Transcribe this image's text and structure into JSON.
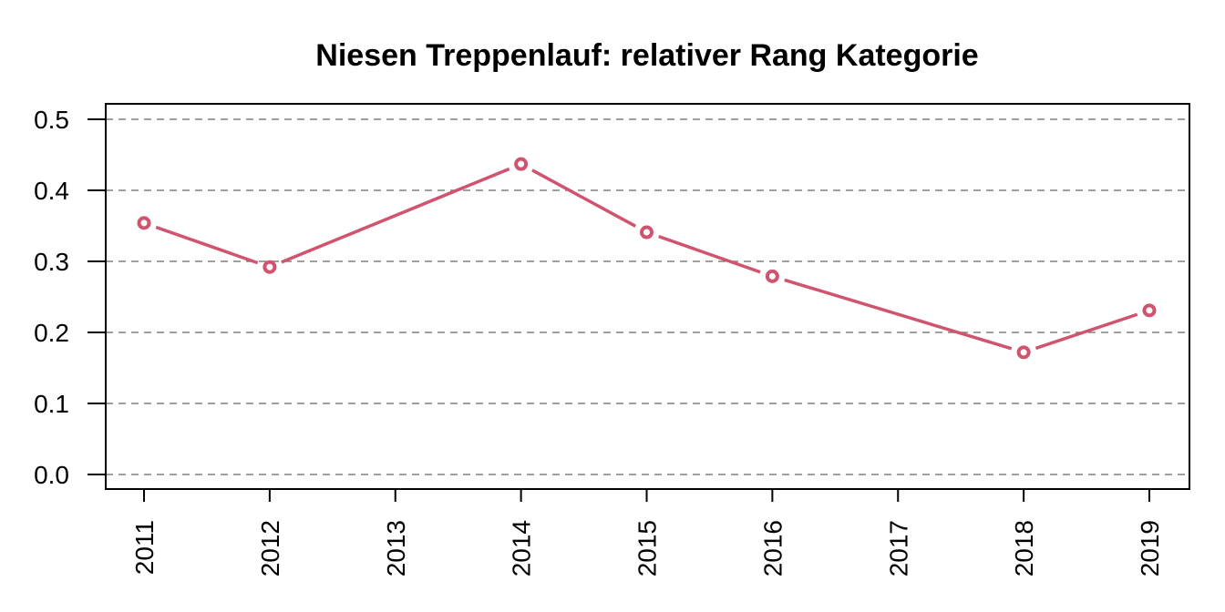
{
  "chart_data": {
    "type": "line",
    "title": "Niesen Treppenlauf: relativer Rang Kategorie",
    "xlabel": "",
    "ylabel": "",
    "x_ticks": [
      "2011",
      "2012",
      "2013",
      "2014",
      "2015",
      "2016",
      "2017",
      "2018",
      "2019"
    ],
    "y_ticks": [
      "0.0",
      "0.1",
      "0.2",
      "0.3",
      "0.4",
      "0.5"
    ],
    "ylim": [
      0.0,
      0.5
    ],
    "grid": true,
    "series": [
      {
        "color": "#d0546e",
        "points": [
          {
            "x": "2011",
            "y": 0.354
          },
          {
            "x": "2012",
            "y": 0.292
          },
          {
            "x": "2014",
            "y": 0.437
          },
          {
            "x": "2015",
            "y": 0.341
          },
          {
            "x": "2016",
            "y": 0.279
          },
          {
            "x": "2018",
            "y": 0.172
          },
          {
            "x": "2019",
            "y": 0.231
          }
        ]
      }
    ]
  }
}
